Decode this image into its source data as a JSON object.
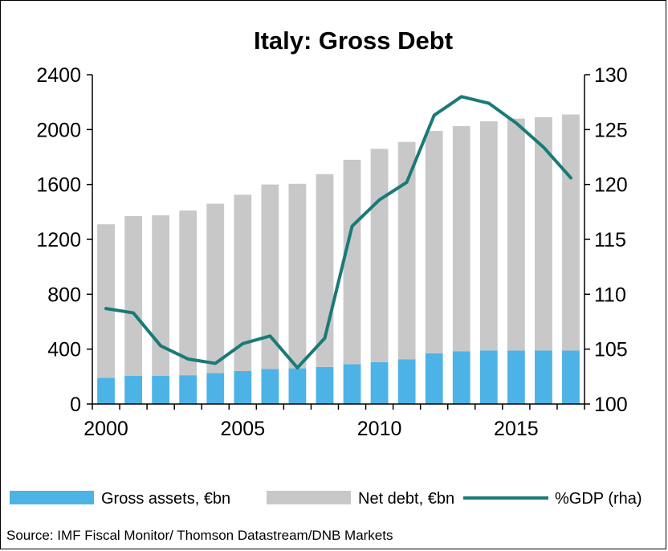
{
  "chart_data": {
    "type": "bar",
    "title": "Italy: Gross Debt",
    "source": "Source:  IMF Fiscal Monitor/ Thomson  Datastream/DNB  Markets",
    "x": [
      2000,
      2001,
      2002,
      2003,
      2004,
      2005,
      2006,
      2007,
      2008,
      2009,
      2010,
      2011,
      2012,
      2013,
      2014,
      2015,
      2016,
      2017
    ],
    "x_tick_labels": [
      "2000",
      "2005",
      "2010",
      "2015"
    ],
    "y_left": {
      "min": 0,
      "max": 2400,
      "ticks": [
        "0",
        "400",
        "800",
        "1200",
        "1600",
        "2000",
        "2400"
      ]
    },
    "y_right": {
      "min": 100,
      "max": 130,
      "ticks": [
        "100",
        "105",
        "110",
        "115",
        "120",
        "125",
        "130"
      ]
    },
    "stacked": true,
    "series": [
      {
        "name": "Gross assets, €bn",
        "type": "bar",
        "color": "#4db3e6",
        "axis": "left",
        "values": [
          190,
          205,
          205,
          210,
          225,
          240,
          255,
          260,
          270,
          290,
          305,
          325,
          370,
          385,
          390,
          390,
          390,
          390
        ]
      },
      {
        "name": "Net debt, €bn",
        "type": "bar",
        "color": "#c8c8c8",
        "axis": "left",
        "values": [
          1120,
          1165,
          1170,
          1200,
          1235,
          1285,
          1345,
          1345,
          1405,
          1490,
          1555,
          1585,
          1620,
          1640,
          1670,
          1690,
          1700,
          1720
        ]
      },
      {
        "name": "%GDP (rha)",
        "type": "line",
        "color": "#1a7a78",
        "axis": "right",
        "values": [
          108.7,
          108.3,
          105.3,
          104.1,
          103.7,
          105.5,
          106.2,
          103.3,
          106.0,
          116.2,
          118.6,
          120.2,
          126.3,
          128.0,
          127.4,
          125.6,
          123.4,
          120.6
        ]
      }
    ],
    "legend_position": "bottom",
    "grid": false
  }
}
